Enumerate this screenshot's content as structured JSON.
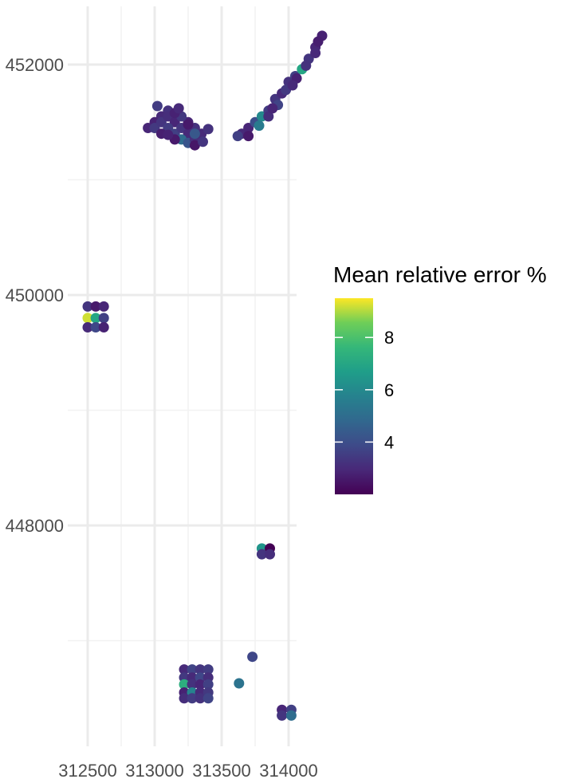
{
  "chart_data": {
    "type": "scatter",
    "title": "",
    "xlabel": "",
    "ylabel": "",
    "xlim": [
      312500,
      314000
    ],
    "ylim": [
      446000,
      452500
    ],
    "grid": true,
    "x_ticks": [
      312500,
      313000,
      313500,
      314000
    ],
    "x_tick_labels": [
      "312500",
      "313000",
      "313500",
      "314000"
    ],
    "y_ticks": [
      448000,
      450000,
      452000
    ],
    "y_tick_labels": [
      "448000",
      "450000",
      "452000"
    ],
    "legend": {
      "title": "Mean relative error %",
      "placement": "right",
      "color_scale": "viridis",
      "range": [
        2.0,
        9.5
      ],
      "ticks": [
        4,
        6,
        8
      ],
      "tick_labels": [
        "4",
        "6",
        "8"
      ]
    },
    "points": [
      [
        313100,
        451600,
        3.2
      ],
      [
        313050,
        451550,
        3.0
      ],
      [
        313000,
        451500,
        2.8
      ],
      [
        312950,
        451450,
        2.9
      ],
      [
        313000,
        451450,
        3.4
      ],
      [
        313050,
        451500,
        3.3
      ],
      [
        313100,
        451550,
        3.1
      ],
      [
        313150,
        451500,
        2.9
      ],
      [
        313100,
        451450,
        3.5
      ],
      [
        313050,
        451400,
        2.7
      ],
      [
        313150,
        451400,
        3.6
      ],
      [
        313200,
        451450,
        3.3
      ],
      [
        313250,
        451400,
        3.0
      ],
      [
        313200,
        451350,
        5.0
      ],
      [
        313250,
        451320,
        4.2
      ],
      [
        313300,
        451350,
        3.1
      ],
      [
        313350,
        451400,
        3.0
      ],
      [
        313300,
        451450,
        3.2
      ],
      [
        313250,
        451500,
        2.9
      ],
      [
        313200,
        451550,
        3.4
      ],
      [
        313150,
        451580,
        2.8
      ],
      [
        313020,
        451640,
        3.5
      ],
      [
        313300,
        451400,
        4.3
      ],
      [
        313400,
        451440,
        3.2
      ],
      [
        313300,
        451300,
        2.5
      ],
      [
        313150,
        451350,
        2.6
      ],
      [
        313100,
        451390,
        2.8
      ],
      [
        313360,
        451330,
        3.3
      ],
      [
        313250,
        451480,
        2.6
      ],
      [
        313180,
        451620,
        3.0
      ],
      [
        313650,
        451400,
        3.0
      ],
      [
        313700,
        451450,
        2.9
      ],
      [
        313750,
        451500,
        4.0
      ],
      [
        313800,
        451550,
        6.0
      ],
      [
        313850,
        451600,
        3.5
      ],
      [
        313900,
        451700,
        3.3
      ],
      [
        313950,
        451750,
        3.0
      ],
      [
        314000,
        451850,
        3.2
      ],
      [
        314050,
        451900,
        3.6
      ],
      [
        314100,
        451960,
        7.0
      ],
      [
        314150,
        452050,
        3.3
      ],
      [
        314200,
        452150,
        2.9
      ],
      [
        314250,
        452250,
        2.8
      ],
      [
        313700,
        451380,
        2.6
      ],
      [
        313780,
        451470,
        5.5
      ],
      [
        313850,
        451550,
        3.1
      ],
      [
        313920,
        451650,
        3.7
      ],
      [
        313980,
        451780,
        3.4
      ],
      [
        314060,
        451880,
        2.8
      ],
      [
        314130,
        451990,
        3.2
      ],
      [
        314200,
        452100,
        3.0
      ],
      [
        314220,
        452200,
        2.7
      ],
      [
        313620,
        451380,
        3.6
      ],
      [
        313880,
        451620,
        2.9
      ],
      [
        314030,
        451820,
        3.0
      ],
      [
        312500,
        449900,
        3.3
      ],
      [
        312560,
        449900,
        2.6
      ],
      [
        312620,
        449900,
        2.9
      ],
      [
        312500,
        449800,
        9.2
      ],
      [
        312560,
        449800,
        7.0
      ],
      [
        312620,
        449800,
        3.6
      ],
      [
        312500,
        449720,
        3.0
      ],
      [
        312560,
        449720,
        3.8
      ],
      [
        312620,
        449720,
        2.8
      ],
      [
        313800,
        447800,
        6.4
      ],
      [
        313860,
        447800,
        2.0
      ],
      [
        313800,
        447750,
        3.3
      ],
      [
        313860,
        447750,
        3.1
      ],
      [
        313220,
        446750,
        3.0
      ],
      [
        313280,
        446750,
        3.7
      ],
      [
        313340,
        446750,
        3.3
      ],
      [
        313400,
        446750,
        3.5
      ],
      [
        313220,
        446680,
        3.4
      ],
      [
        313280,
        446680,
        3.0
      ],
      [
        313340,
        446680,
        3.8
      ],
      [
        313400,
        446680,
        3.1
      ],
      [
        313220,
        446620,
        7.3
      ],
      [
        313280,
        446620,
        3.2
      ],
      [
        313340,
        446620,
        2.9
      ],
      [
        313400,
        446620,
        3.6
      ],
      [
        313220,
        446550,
        2.8
      ],
      [
        313280,
        446550,
        5.8
      ],
      [
        313340,
        446550,
        3.0
      ],
      [
        313400,
        446550,
        3.4
      ],
      [
        313220,
        446500,
        3.1
      ],
      [
        313280,
        446500,
        3.5
      ],
      [
        313340,
        446500,
        3.2
      ],
      [
        313400,
        446500,
        3.7
      ],
      [
        313730,
        446860,
        3.8
      ],
      [
        313630,
        446630,
        5.2
      ],
      [
        313950,
        446400,
        2.9
      ],
      [
        314020,
        446400,
        3.6
      ],
      [
        313950,
        446350,
        3.3
      ],
      [
        314020,
        446350,
        5.0
      ]
    ]
  }
}
